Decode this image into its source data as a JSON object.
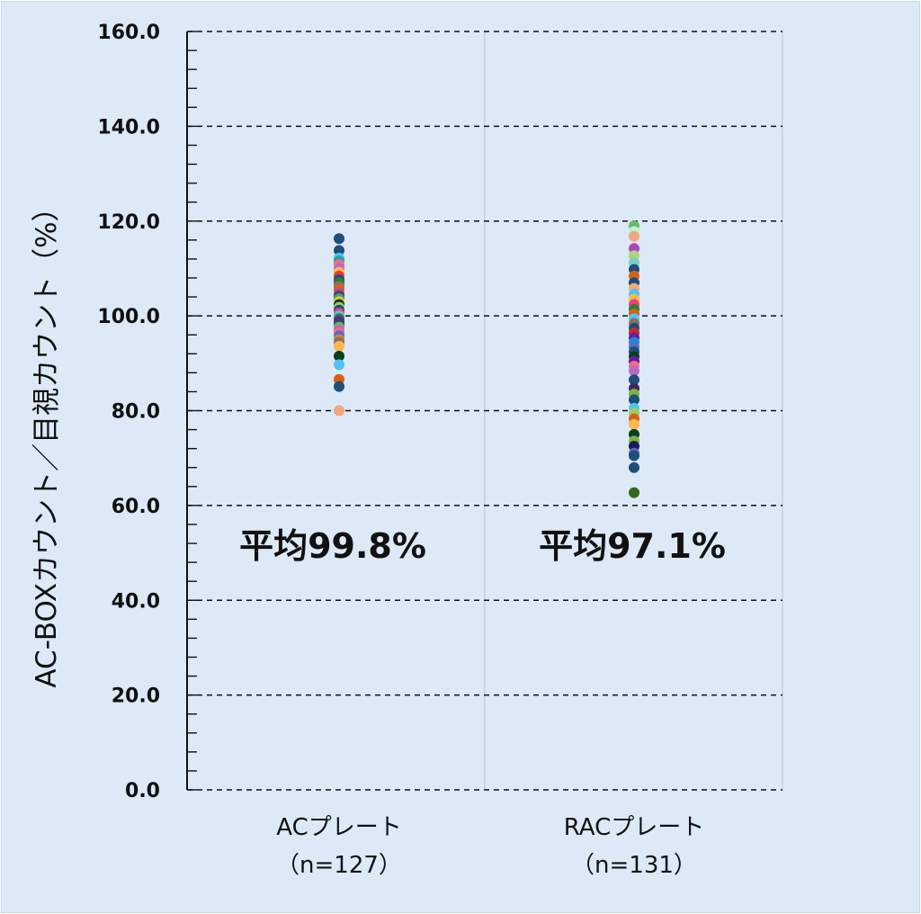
{
  "chart_data": {
    "type": "scatter",
    "title": "",
    "ylabel": "AC-BOXカウント／目視カウント（%）",
    "ylim": [
      0,
      160
    ],
    "yticks": [
      "0.0",
      "20.0",
      "40.0",
      "60.0",
      "80.0",
      "100.0",
      "120.0",
      "140.0",
      "160.0"
    ],
    "grid": true,
    "categories": [
      {
        "line1": "ACプレート",
        "line2": "（n=127）"
      },
      {
        "line1": "RACプレート",
        "line2": "（n=131）"
      }
    ],
    "annotations": [
      "平均99.8%",
      "平均97.1%"
    ],
    "series": [
      {
        "category": 0,
        "values": [
          116.3,
          113.8,
          112.2,
          111.6,
          110.8,
          110.0,
          109.2,
          108.4,
          107.6,
          107.0,
          106.2,
          105.6,
          104.8,
          104.2,
          103.6,
          103.0,
          102.4,
          101.8,
          101.2,
          100.6,
          100.0,
          99.4,
          98.8,
          98.2,
          97.6,
          97.0,
          96.4,
          95.8,
          95.0,
          94.4,
          93.6,
          91.5,
          89.7,
          86.6,
          85.1,
          80.0
        ],
        "colors": [
          "#1e4e79",
          "#1e4e79",
          "#4fc3f7",
          "#26a69a",
          "#ef6c8a",
          "#ba68c8",
          "#ffb74d",
          "#e53935",
          "#1e4e79",
          "#2e7d32",
          "#8d6e63",
          "#d86018",
          "#ab47bc",
          "#5d4037",
          "#26a69a",
          "#fbc02d",
          "#0b3d20",
          "#9ccc65",
          "#1e4e79",
          "#ec407a",
          "#4fc3f7",
          "#2e7d32",
          "#6a1b9a",
          "#1e4e79",
          "#7cb342",
          "#ba68c8",
          "#ef6c8a",
          "#5c6bc0",
          "#c68642",
          "#8d6e63",
          "#ffb74d",
          "#0b3d20",
          "#4fc3f7",
          "#d86018",
          "#1e4e79",
          "#f4a582"
        ]
      },
      {
        "category": 1,
        "values": [
          119.0,
          117.8,
          116.8,
          114.2,
          112.7,
          111.2,
          109.8,
          108.4,
          107.0,
          105.8,
          104.6,
          103.5,
          102.4,
          101.4,
          100.4,
          99.4,
          98.4,
          97.4,
          96.4,
          95.4,
          94.4,
          93.4,
          92.4,
          91.4,
          90.4,
          89.4,
          88.4,
          86.5,
          84.7,
          83.5,
          82.3,
          80.5,
          79.5,
          78.3,
          77.1,
          75.0,
          73.6,
          72.5,
          71.0,
          70.5,
          68.0,
          62.7
        ],
        "colors": [
          "#66bb6a",
          "#b9f6ca",
          "#f4a582",
          "#ab47bc",
          "#aed581",
          "#80cbc4",
          "#1e4e79",
          "#d86018",
          "#1e4e79",
          "#f9a875",
          "#4fc3f7",
          "#ffb74d",
          "#ec407a",
          "#2e7d32",
          "#d86018",
          "#4fc3f7",
          "#8d6e63",
          "#1e4e79",
          "#c62828",
          "#6a1b9a",
          "#1e88e5",
          "#5c6bc0",
          "#1e4e79",
          "#0b3d20",
          "#6a1b9a",
          "#ef6c8a",
          "#ba68c8",
          "#1e4e79",
          "#4a235a",
          "#7cb342",
          "#1e4e79",
          "#4fc3f7",
          "#9ccc65",
          "#d86018",
          "#ffb74d",
          "#0b3d20",
          "#7cb342",
          "#1a1a5e",
          "#5c6bc0",
          "#1e4e79",
          "#1e4e79",
          "#33691e"
        ]
      }
    ]
  }
}
